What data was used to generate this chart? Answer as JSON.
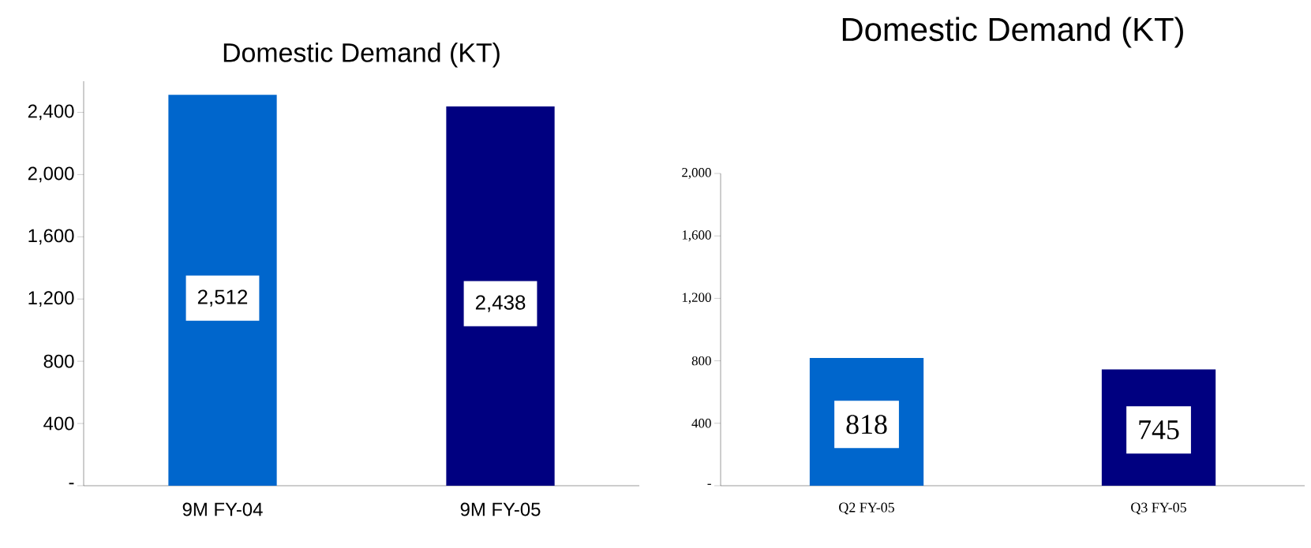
{
  "chart_data": [
    {
      "type": "bar",
      "title": "Domestic Demand (KT)",
      "categories": [
        "9M FY-04",
        "9M FY-05"
      ],
      "values": [
        2512,
        2438
      ],
      "colors": [
        "#0066cc",
        "#000080"
      ],
      "value_labels": [
        "2,512",
        "2,438"
      ],
      "ylim": [
        0,
        2600
      ],
      "yticks": [
        {
          "value": 0,
          "label": "-"
        },
        400,
        800,
        {
          "value": 1200,
          "label": "1,200"
        },
        {
          "value": 1600,
          "label": "1,600"
        },
        {
          "value": 2000,
          "label": "2,000"
        },
        {
          "value": 2400,
          "label": "2,400"
        }
      ],
      "grid": false
    },
    {
      "type": "bar",
      "title": "Domestic Demand (KT)",
      "categories": [
        "Q2 FY-05",
        "Q3 FY-05"
      ],
      "values": [
        818,
        745
      ],
      "colors": [
        "#0066cc",
        "#000080"
      ],
      "value_labels": [
        "818",
        "745"
      ],
      "ylim": [
        0,
        2000
      ],
      "yticks": [
        {
          "value": 0,
          "label": "-"
        },
        400,
        800,
        {
          "value": 1200,
          "label": "1,200"
        },
        {
          "value": 1600,
          "label": "1,600"
        },
        {
          "value": 2000,
          "label": "2,000"
        }
      ],
      "grid": false
    }
  ]
}
